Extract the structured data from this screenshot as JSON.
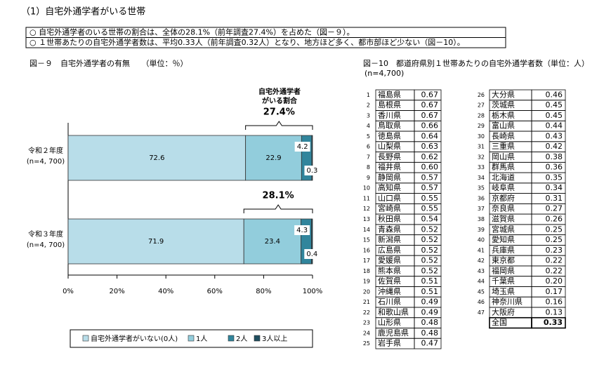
{
  "header": {
    "title": "（1）自宅外通学者がいる世帯"
  },
  "notes": [
    "○ 自宅外通学者のいる世帯の割合は、全体の28.1%（前年調査27.4%）を占めた（図－９）。",
    "○ １世帯あたりの自宅外通学者数は、平均0.33人（前年調査0.32人）となり、地方ほど多く、都市部ほど少ない（図－10）。"
  ],
  "chart_data": {
    "type": "bar",
    "orientation": "horizontal",
    "stacked": true,
    "title": "図－９　自宅外通学者の有無　　（単位：％）",
    "categories": [
      "令和２年度",
      "令和３年度"
    ],
    "category_notes": [
      "(n=4, 700)",
      "(n=4, 700)"
    ],
    "series": [
      {
        "name": "自宅外通学者がいない(0人)",
        "color": "#b8dde9",
        "values": [
          72.6,
          71.9
        ]
      },
      {
        "name": "1人",
        "color": "#92cddc",
        "values": [
          22.9,
          23.4
        ]
      },
      {
        "name": "2人",
        "color": "#31859c",
        "values": [
          4.2,
          4.3
        ]
      },
      {
        "name": "3人以上",
        "color": "#1f4e5f",
        "values": [
          0.3,
          0.4
        ]
      }
    ],
    "xlim": [
      0,
      100
    ],
    "xticks": [
      {
        "value": 0,
        "label": "0%"
      },
      {
        "value": 20,
        "label": "20%"
      },
      {
        "value": 40,
        "label": "40%"
      },
      {
        "value": 60,
        "label": "60%"
      },
      {
        "value": 80,
        "label": "80%"
      },
      {
        "value": 100,
        "label": "100%"
      }
    ],
    "legend": "bottom",
    "bracket": {
      "title": [
        "自宅外通学者",
        "がいる割合"
      ],
      "values": [
        27.4,
        28.1
      ],
      "value_labels": [
        "27.4%",
        "28.1%"
      ]
    }
  },
  "table": {
    "title": "図－10　都道府県別１世帯あたりの自宅外通学者数（単位：人）",
    "subtitle": "(n=4,700)",
    "rows": [
      [
        "1",
        "福島県",
        "0.67"
      ],
      [
        "2",
        "島根県",
        "0.67"
      ],
      [
        "3",
        "香川県",
        "0.67"
      ],
      [
        "4",
        "鳥取県",
        "0.66"
      ],
      [
        "5",
        "徳島県",
        "0.64"
      ],
      [
        "6",
        "山梨県",
        "0.63"
      ],
      [
        "7",
        "長野県",
        "0.62"
      ],
      [
        "8",
        "福井県",
        "0.60"
      ],
      [
        "9",
        "静岡県",
        "0.57"
      ],
      [
        "10",
        "高知県",
        "0.57"
      ],
      [
        "11",
        "山口県",
        "0.55"
      ],
      [
        "12",
        "宮崎県",
        "0.55"
      ],
      [
        "13",
        "秋田県",
        "0.54"
      ],
      [
        "14",
        "青森県",
        "0.52"
      ],
      [
        "15",
        "新潟県",
        "0.52"
      ],
      [
        "16",
        "広島県",
        "0.52"
      ],
      [
        "17",
        "愛媛県",
        "0.52"
      ],
      [
        "18",
        "熊本県",
        "0.52"
      ],
      [
        "19",
        "佐賀県",
        "0.51"
      ],
      [
        "20",
        "沖縄県",
        "0.51"
      ],
      [
        "21",
        "石川県",
        "0.49"
      ],
      [
        "22",
        "和歌山県",
        "0.49"
      ],
      [
        "23",
        "山形県",
        "0.48"
      ],
      [
        "24",
        "鹿児島県",
        "0.48"
      ],
      [
        "25",
        "岩手県",
        "0.47"
      ],
      [
        "26",
        "大分県",
        "0.46"
      ],
      [
        "27",
        "茨城県",
        "0.45"
      ],
      [
        "28",
        "栃木県",
        "0.45"
      ],
      [
        "29",
        "富山県",
        "0.44"
      ],
      [
        "30",
        "長崎県",
        "0.43"
      ],
      [
        "31",
        "三重県",
        "0.42"
      ],
      [
        "32",
        "岡山県",
        "0.38"
      ],
      [
        "33",
        "群馬県",
        "0.36"
      ],
      [
        "34",
        "北海道",
        "0.35"
      ],
      [
        "35",
        "岐阜県",
        "0.34"
      ],
      [
        "36",
        "京都府",
        "0.31"
      ],
      [
        "37",
        "奈良県",
        "0.27"
      ],
      [
        "38",
        "滋賀県",
        "0.26"
      ],
      [
        "39",
        "宮城県",
        "0.25"
      ],
      [
        "40",
        "愛知県",
        "0.25"
      ],
      [
        "41",
        "兵庫県",
        "0.23"
      ],
      [
        "42",
        "東京都",
        "0.22"
      ],
      [
        "43",
        "福岡県",
        "0.22"
      ],
      [
        "44",
        "千葉県",
        "0.20"
      ],
      [
        "45",
        "埼玉県",
        "0.17"
      ],
      [
        "46",
        "神奈川県",
        "0.16"
      ],
      [
        "47",
        "大阪府",
        "0.13"
      ]
    ],
    "total": [
      "全国",
      "0.33"
    ]
  }
}
